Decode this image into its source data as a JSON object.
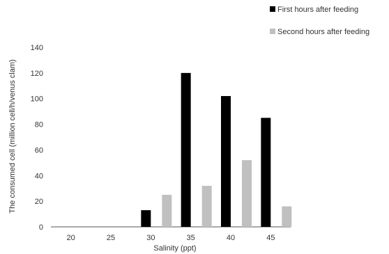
{
  "chart_data": {
    "type": "bar",
    "categories": [
      "20",
      "25",
      "30",
      "35",
      "40",
      "45"
    ],
    "series": [
      {
        "name": "First hours after feeding",
        "color": "#000000",
        "values": [
          0,
          0,
          13,
          120,
          102,
          85
        ]
      },
      {
        "name": "Second hours after feeding",
        "color": "#c0c0c0",
        "values": [
          0,
          0,
          25,
          32,
          52,
          16
        ]
      }
    ],
    "xlabel": "Salinity (ppt)",
    "ylabel": "The consumed cell (million cell/h/venus clam)",
    "ylim": [
      0,
      140
    ],
    "yticks": [
      "0",
      "20",
      "40",
      "60",
      "80",
      "100",
      "120",
      "140"
    ],
    "grid": false,
    "legend_position": "top-right"
  }
}
